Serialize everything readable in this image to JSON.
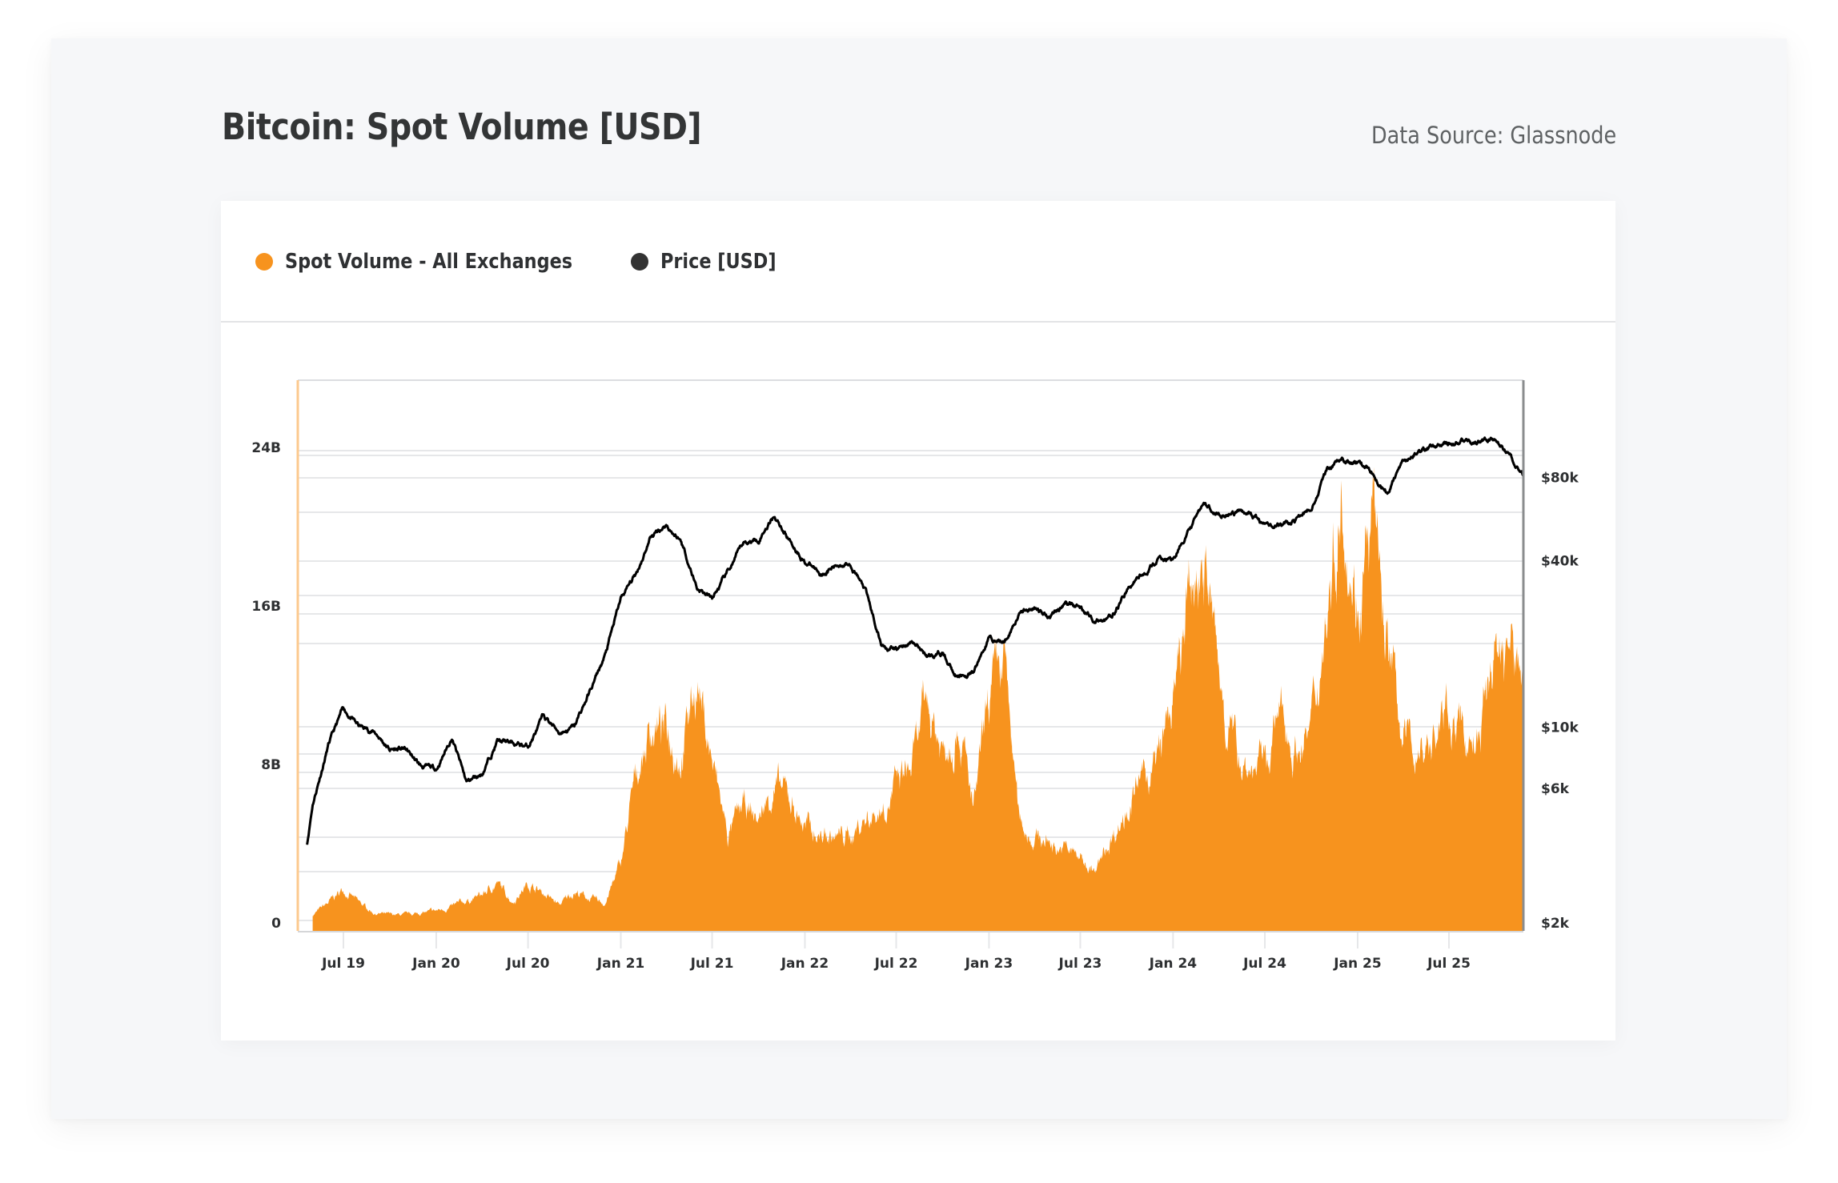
{
  "header": {
    "title": "Bitcoin: Spot Volume [USD]",
    "source": "Data Source: Glassnode"
  },
  "legend": {
    "items": [
      {
        "label": "Spot Volume - All Exchanges",
        "color": "#f7931e"
      },
      {
        "label": "Price [USD]",
        "color": "#333333"
      }
    ]
  },
  "chart_data": {
    "type": "area",
    "title": "Bitcoin: Spot Volume [USD]",
    "xlabel": "",
    "ylabel": "",
    "x_tick_labels": [
      "Jul 19",
      "Jan 20",
      "Jul 20",
      "Jan 21",
      "Jul 21",
      "Jan 22",
      "Jul 22",
      "Jan 23",
      "Jul 23",
      "Jan 24",
      "Jul 24",
      "Jan 25",
      "Jul 25"
    ],
    "x_ticks_dates": [
      "2019-07-01",
      "2020-01-01",
      "2020-07-01",
      "2021-01-01",
      "2021-07-01",
      "2022-01-01",
      "2022-07-01",
      "2023-01-01",
      "2023-07-01",
      "2024-01-01",
      "2024-07-01",
      "2025-01-01",
      "2025-07-01"
    ],
    "x_range": [
      "2019-04-15",
      "2025-11-25"
    ],
    "left_axis": {
      "label": "Spot Volume",
      "ticks": [
        0,
        8,
        16,
        24
      ],
      "tick_labels": [
        "0",
        "8B",
        "16B",
        "24B"
      ],
      "unit": "B USD",
      "ylim": [
        0,
        27.8
      ],
      "scale": "linear"
    },
    "right_axis": {
      "label": "Price [USD]",
      "ticks": [
        2000,
        6000,
        10000,
        40000,
        80000
      ],
      "tick_labels": [
        "$2k",
        "$6k",
        "$10k",
        "$40k",
        "$80k"
      ],
      "ylim": [
        1830,
        180000
      ],
      "scale": "log"
    },
    "grid": true,
    "legend_position": "top-left",
    "series": [
      {
        "name": "Spot Volume - All Exchanges",
        "type": "area",
        "axis": "left",
        "color": "#f7931e",
        "unit": "B USD",
        "x": [
          "2019-05-01",
          "2019-06-01",
          "2019-07-01",
          "2019-08-01",
          "2019-09-01",
          "2019-10-01",
          "2019-11-01",
          "2019-12-01",
          "2020-01-01",
          "2020-02-01",
          "2020-03-01",
          "2020-04-01",
          "2020-05-01",
          "2020-06-01",
          "2020-07-01",
          "2020-08-01",
          "2020-09-01",
          "2020-10-01",
          "2020-11-01",
          "2020-12-01",
          "2021-01-01",
          "2021-02-01",
          "2021-03-01",
          "2021-04-01",
          "2021-05-01",
          "2021-06-01",
          "2021-07-01",
          "2021-08-01",
          "2021-09-01",
          "2021-10-01",
          "2021-11-01",
          "2021-12-01",
          "2022-01-01",
          "2022-02-01",
          "2022-03-01",
          "2022-04-01",
          "2022-05-01",
          "2022-06-01",
          "2022-07-01",
          "2022-08-01",
          "2022-09-01",
          "2022-10-01",
          "2022-11-01",
          "2022-12-01",
          "2023-01-01",
          "2023-02-01",
          "2023-03-01",
          "2023-04-01",
          "2023-05-01",
          "2023-06-01",
          "2023-07-01",
          "2023-08-01",
          "2023-09-01",
          "2023-10-01",
          "2023-11-01",
          "2023-12-01",
          "2024-01-01",
          "2024-02-01",
          "2024-03-01",
          "2024-04-01",
          "2024-05-01",
          "2024-06-01",
          "2024-07-01",
          "2024-08-01",
          "2024-09-01",
          "2024-10-01",
          "2024-11-01",
          "2024-12-01",
          "2025-01-01",
          "2025-02-01",
          "2025-03-01",
          "2025-04-01",
          "2025-05-01",
          "2025-06-01",
          "2025-07-01",
          "2025-08-01",
          "2025-09-01",
          "2025-10-01",
          "2025-11-01",
          "2025-11-25"
        ],
        "values": [
          0.8,
          1.4,
          2.1,
          1.4,
          0.9,
          0.8,
          0.8,
          0.9,
          1.0,
          1.2,
          1.5,
          1.8,
          2.4,
          1.5,
          2.4,
          1.9,
          1.3,
          2.0,
          1.6,
          1.4,
          3.4,
          7.9,
          10.3,
          10.1,
          9.1,
          12.8,
          8.5,
          4.8,
          6.2,
          5.6,
          7.3,
          6.7,
          5.3,
          4.8,
          4.7,
          4.8,
          5.7,
          6.2,
          7.3,
          8.2,
          11.6,
          9.1,
          11.0,
          5.9,
          11.5,
          13.5,
          5.6,
          4.7,
          4.5,
          4.1,
          3.7,
          2.9,
          4.7,
          6.2,
          7.6,
          8.5,
          11.5,
          16.2,
          19.5,
          12.6,
          9.5,
          8.2,
          8.5,
          10.8,
          9.1,
          10.2,
          16.2,
          22.6,
          16.8,
          20.5,
          14.7,
          9.8,
          9.1,
          9.7,
          11.0,
          9.7,
          9.8,
          14.5,
          14.2,
          12.9
        ]
      },
      {
        "name": "Price [USD]",
        "type": "line",
        "axis": "right",
        "color": "#000000",
        "unit": "USD",
        "x": [
          "2019-04-20",
          "2019-05-01",
          "2019-06-01",
          "2019-07-01",
          "2019-08-01",
          "2019-09-01",
          "2019-10-01",
          "2019-11-01",
          "2019-12-01",
          "2020-01-01",
          "2020-02-01",
          "2020-03-01",
          "2020-04-01",
          "2020-05-01",
          "2020-06-01",
          "2020-07-01",
          "2020-08-01",
          "2020-09-01",
          "2020-10-01",
          "2020-11-01",
          "2020-12-01",
          "2021-01-01",
          "2021-02-01",
          "2021-03-01",
          "2021-04-01",
          "2021-05-01",
          "2021-06-01",
          "2021-07-01",
          "2021-08-01",
          "2021-09-01",
          "2021-10-01",
          "2021-11-01",
          "2021-12-01",
          "2022-01-01",
          "2022-02-01",
          "2022-03-01",
          "2022-04-01",
          "2022-05-01",
          "2022-06-01",
          "2022-07-01",
          "2022-08-01",
          "2022-09-01",
          "2022-10-01",
          "2022-11-01",
          "2022-12-01",
          "2023-01-01",
          "2023-02-01",
          "2023-03-01",
          "2023-04-01",
          "2023-05-01",
          "2023-06-01",
          "2023-07-01",
          "2023-08-01",
          "2023-09-01",
          "2023-10-01",
          "2023-11-01",
          "2023-12-01",
          "2024-01-01",
          "2024-02-01",
          "2024-03-01",
          "2024-04-01",
          "2024-05-01",
          "2024-06-01",
          "2024-07-01",
          "2024-08-01",
          "2024-09-01",
          "2024-10-01",
          "2024-11-01",
          "2024-12-01",
          "2025-01-01",
          "2025-02-01",
          "2025-03-01",
          "2025-04-01",
          "2025-05-01",
          "2025-06-01",
          "2025-07-01",
          "2025-08-01",
          "2025-09-01",
          "2025-10-01",
          "2025-11-01",
          "2025-11-25"
        ],
        "values": [
          3800,
          5300,
          8600,
          11600,
          10000,
          9600,
          8300,
          8300,
          7200,
          7000,
          9200,
          6300,
          6800,
          8900,
          8700,
          8500,
          10900,
          9600,
          10000,
          13500,
          18100,
          29000,
          36000,
          49000,
          54000,
          47000,
          32000,
          29000,
          36000,
          46000,
          48000,
          59000,
          48000,
          40000,
          36000,
          38000,
          40000,
          31000,
          20000,
          19000,
          20300,
          18100,
          18500,
          15100,
          15600,
          21000,
          20300,
          26000,
          27000,
          25500,
          28000,
          27000,
          24300,
          24600,
          31000,
          36000,
          40000,
          40000,
          51000,
          64000,
          60000,
          59000,
          60000,
          53000,
          54000,
          56000,
          62000,
          86000,
          92000,
          91000,
          82000,
          72000,
          91000,
          100000,
          105000,
          105000,
          107000,
          107000,
          110000,
          95000,
          82000
        ]
      }
    ]
  }
}
